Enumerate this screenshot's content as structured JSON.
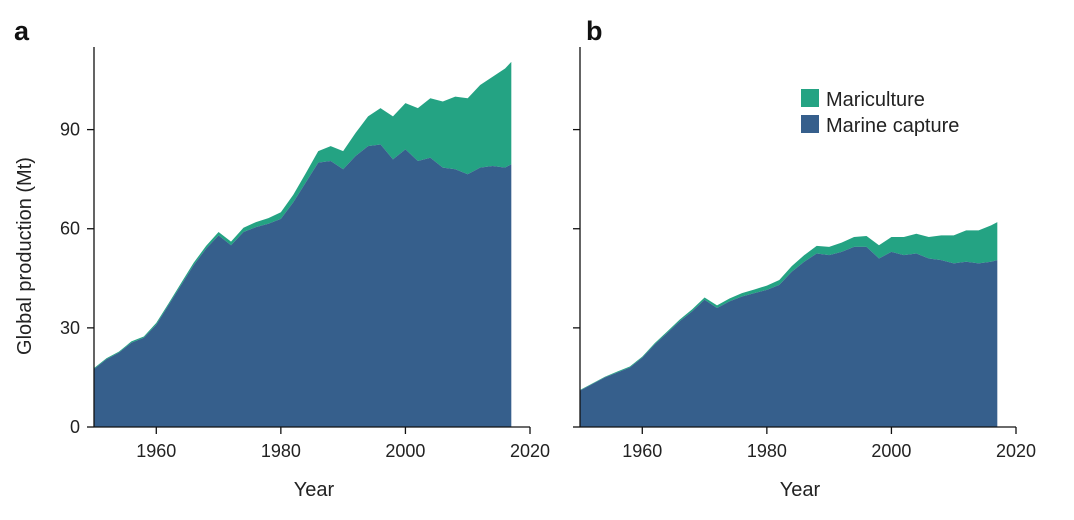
{
  "colors": {
    "mariculture": "#24a383",
    "marine_capture": "#365f8c",
    "axis": "#111111"
  },
  "legend": {
    "items": [
      {
        "label": "Mariculture",
        "color": "#24a383"
      },
      {
        "label": "Marine capture",
        "color": "#365f8c"
      }
    ],
    "placement": "top-right of panel b"
  },
  "chart_data": [
    {
      "type": "area",
      "panel_label": "a",
      "stacked": true,
      "xlabel": "Year",
      "ylabel": "Global production (Mt)",
      "xlim": [
        1950,
        2020
      ],
      "ylim": [
        0,
        115
      ],
      "xticks": [
        1960,
        1980,
        2000,
        2020
      ],
      "yticks": [
        0,
        30,
        60,
        90
      ],
      "grid": false,
      "x": [
        1950,
        1952,
        1954,
        1956,
        1958,
        1960,
        1962,
        1964,
        1966,
        1968,
        1970,
        1972,
        1974,
        1976,
        1978,
        1980,
        1982,
        1984,
        1986,
        1988,
        1990,
        1992,
        1994,
        1996,
        1998,
        2000,
        2002,
        2004,
        2006,
        2008,
        2010,
        2012,
        2014,
        2016,
        2017
      ],
      "series": [
        {
          "name": "Marine capture",
          "values": [
            17.5,
            20.5,
            22.5,
            25.5,
            27,
            31,
            37,
            43,
            49,
            54,
            58,
            55,
            59,
            60.5,
            61.5,
            63,
            68,
            74,
            80,
            80.5,
            78,
            82,
            85,
            85.5,
            81,
            84,
            80.5,
            81.5,
            78.5,
            78,
            76.5,
            78.5,
            79,
            78.5,
            79.5
          ]
        },
        {
          "name": "Mariculture",
          "values": [
            0.3,
            0.3,
            0.3,
            0.4,
            0.4,
            0.5,
            0.5,
            0.6,
            0.7,
            0.8,
            1.0,
            1.1,
            1.3,
            1.5,
            1.7,
            2.0,
            2.3,
            2.8,
            3.5,
            4.5,
            5.5,
            7,
            9,
            11,
            13,
            14,
            16,
            18,
            20,
            22,
            23,
            25,
            27,
            30,
            31
          ]
        }
      ]
    },
    {
      "type": "area",
      "panel_label": "b",
      "stacked": true,
      "xlabel": "Year",
      "ylabel": "",
      "xlim": [
        1950,
        2020
      ],
      "ylim": [
        0,
        115
      ],
      "xticks": [
        1960,
        1980,
        2000,
        2020
      ],
      "yticks": [
        0,
        30,
        60,
        90
      ],
      "grid": false,
      "x": [
        1950,
        1952,
        1954,
        1956,
        1958,
        1960,
        1962,
        1964,
        1966,
        1968,
        1970,
        1972,
        1974,
        1976,
        1978,
        1980,
        1982,
        1984,
        1986,
        1988,
        1990,
        1992,
        1994,
        1996,
        1998,
        2000,
        2002,
        2004,
        2006,
        2008,
        2010,
        2012,
        2014,
        2016,
        2017
      ],
      "series": [
        {
          "name": "Marine capture",
          "values": [
            11,
            13,
            15,
            16.5,
            18,
            21,
            25,
            28.5,
            32,
            35,
            38.5,
            36,
            38,
            39.5,
            40.5,
            41.5,
            43,
            47,
            50,
            52.5,
            52,
            53,
            54.5,
            54.5,
            51,
            53,
            52,
            52.5,
            51,
            50.5,
            49.5,
            50,
            49.5,
            50,
            50.5
          ]
        },
        {
          "name": "Mariculture",
          "values": [
            0.2,
            0.2,
            0.2,
            0.3,
            0.3,
            0.3,
            0.4,
            0.4,
            0.5,
            0.6,
            0.7,
            0.8,
            0.9,
            1.0,
            1.1,
            1.3,
            1.5,
            1.7,
            2.0,
            2.3,
            2.5,
            2.8,
            3,
            3.3,
            4,
            4.5,
            5.5,
            6,
            6.5,
            7.5,
            8.5,
            9.5,
            10,
            11,
            11.5
          ]
        }
      ]
    }
  ]
}
